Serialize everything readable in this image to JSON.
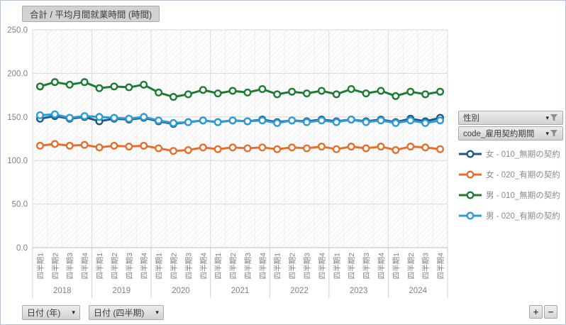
{
  "title_button": {
    "label": "合計 / 平均月間就業時間 (時間)"
  },
  "filters": {
    "gender": {
      "label": "性別"
    },
    "contract": {
      "label": "code_雇用契約期間"
    }
  },
  "axis_fields": {
    "year": {
      "label": "日付 (年)"
    },
    "quarter": {
      "label": "日付 (四半期)"
    }
  },
  "zoom_controls": {
    "expand": "+",
    "collapse": "−"
  },
  "icons": {
    "dropdown": "▾",
    "filter": "filter-funnel"
  },
  "colors": {
    "female_permanent": "#1C5A86",
    "female_fixed": "#E76F2D",
    "male_permanent": "#1E7B34",
    "male_fixed": "#2D9BD5",
    "axis_text": "#808080",
    "legend_text": "#8A8A8A"
  },
  "chart_data": {
    "type": "line",
    "title": "合計 / 平均月間就業時間 (時間)",
    "ylabel": "",
    "xlabel": "",
    "ylim": [
      0,
      250
    ],
    "ytick_labels": [
      "0.0",
      "50.0",
      "100.0",
      "150.0",
      "200.0",
      "250.0"
    ],
    "grid": true,
    "legend_position": "right",
    "years": [
      "2018",
      "2019",
      "2020",
      "2021",
      "2022",
      "2023",
      "2024"
    ],
    "quarter_labels": [
      "四半期1",
      "四半期2",
      "四半期3",
      "四半期4"
    ],
    "series": [
      {
        "name": "女 - 010_無期の契約",
        "color": "#1C5A86",
        "values": [
          148,
          151,
          148,
          150,
          145,
          148,
          147,
          149,
          145,
          142,
          144,
          146,
          144,
          146,
          145,
          147,
          144,
          146,
          145,
          147,
          145,
          147,
          145,
          147,
          144,
          148,
          145,
          149
        ]
      },
      {
        "name": "女 - 020_有期の契約",
        "color": "#E76F2D",
        "values": [
          117,
          119,
          117,
          118,
          115,
          117,
          116,
          117,
          114,
          111,
          112,
          115,
          113,
          115,
          114,
          115,
          113,
          115,
          114,
          116,
          113,
          116,
          114,
          116,
          112,
          116,
          115,
          113
        ]
      },
      {
        "name": "男 - 010_無期の契約",
        "color": "#1E7B34",
        "values": [
          185,
          190,
          187,
          190,
          183,
          185,
          184,
          187,
          178,
          173,
          176,
          181,
          177,
          180,
          178,
          182,
          176,
          179,
          177,
          180,
          176,
          182,
          177,
          180,
          174,
          179,
          176,
          179
        ]
      },
      {
        "name": "男 - 020_有期の契約",
        "color": "#2D9BD5",
        "values": [
          152,
          153,
          149,
          151,
          150,
          149,
          148,
          150,
          146,
          143,
          144,
          146,
          144,
          146,
          145,
          146,
          143,
          146,
          144,
          146,
          144,
          147,
          144,
          146,
          143,
          146,
          143,
          146
        ]
      }
    ]
  }
}
